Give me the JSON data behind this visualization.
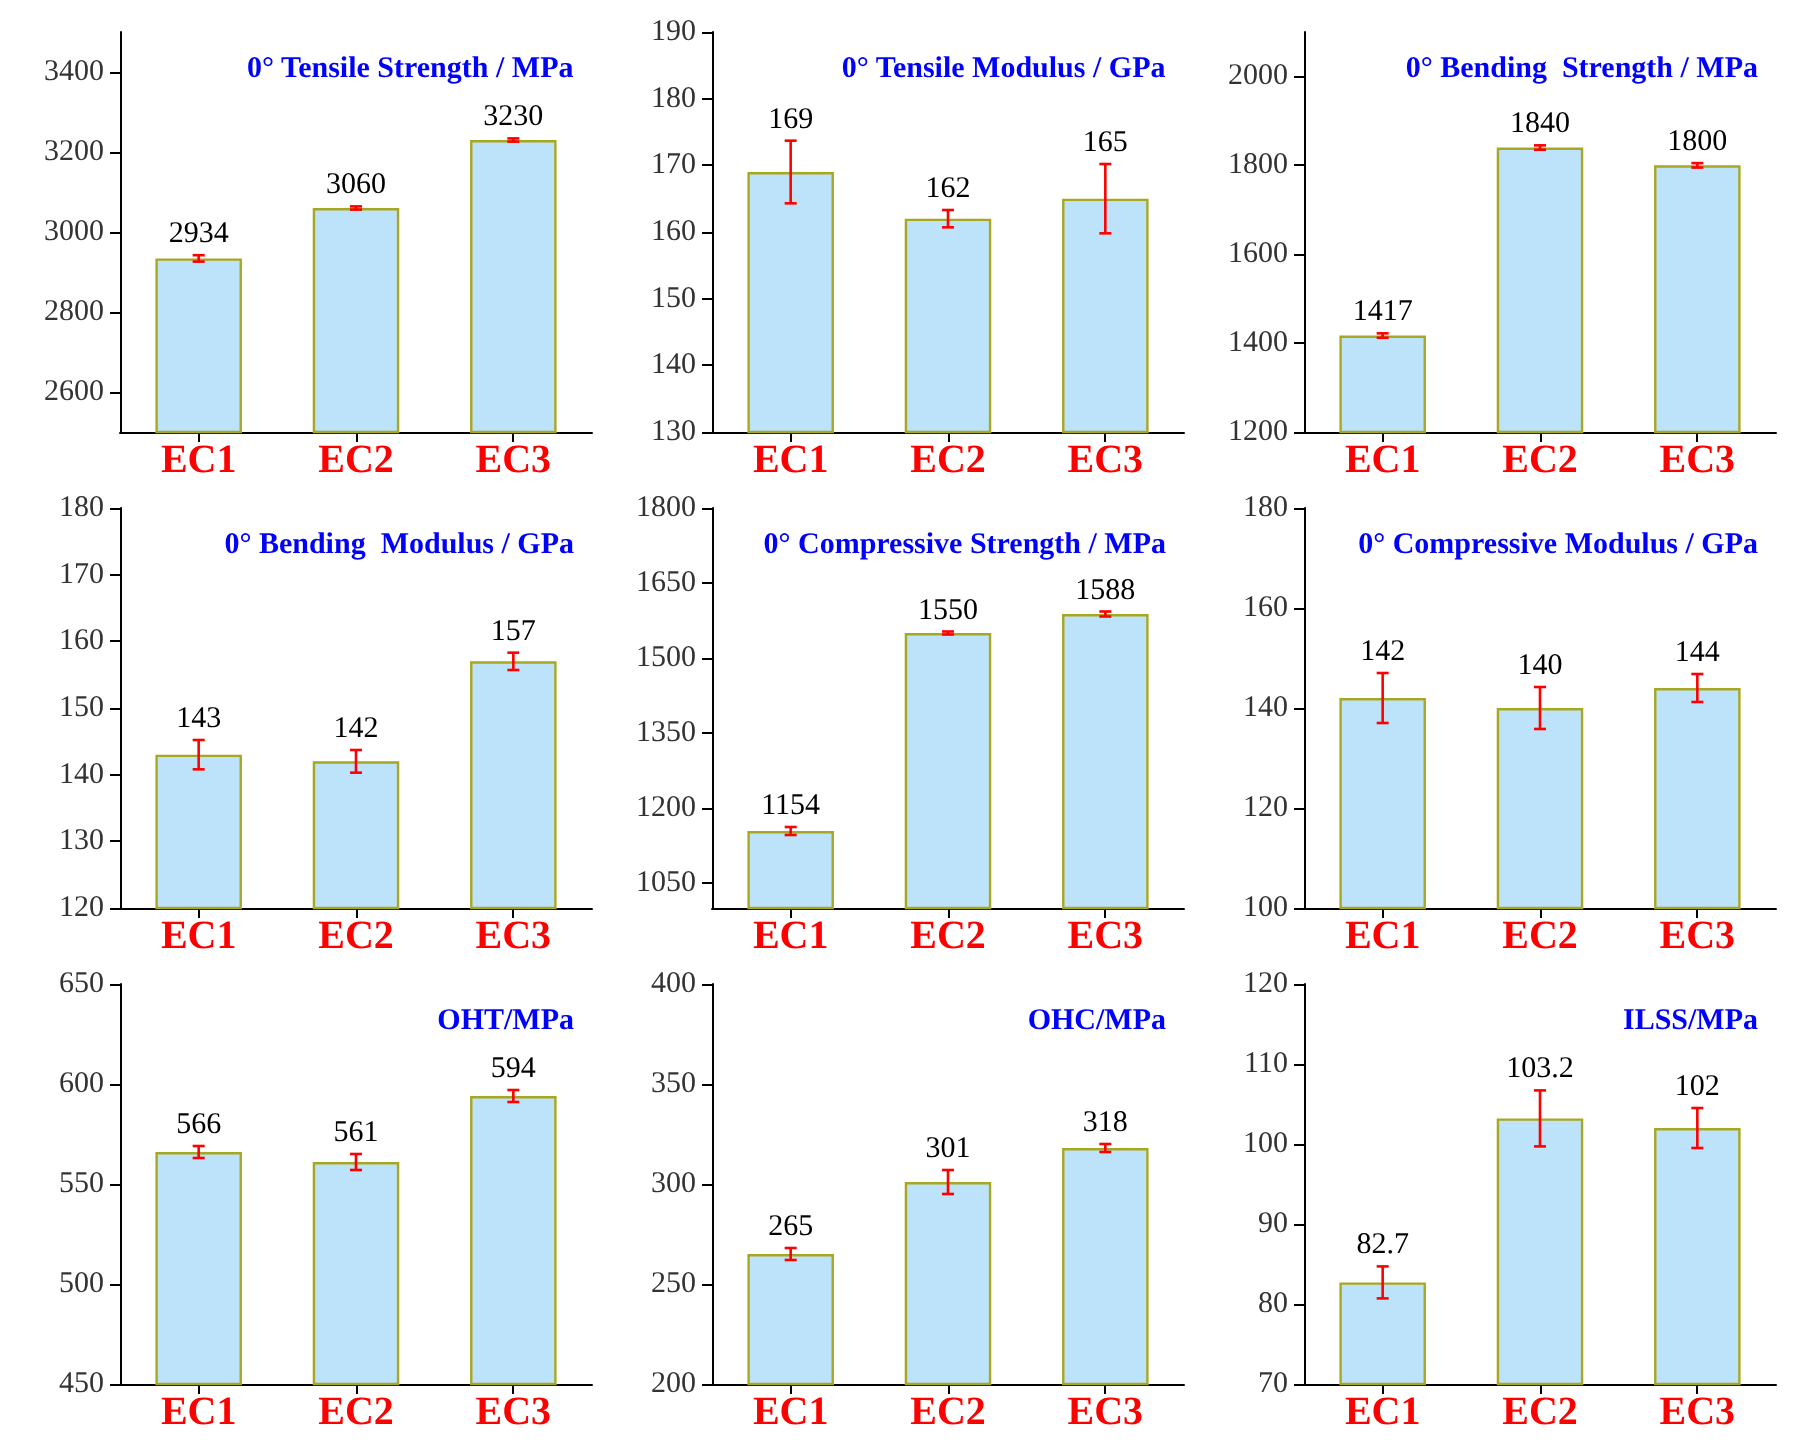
{
  "chart_data": [
    {
      "type": "bar",
      "title": "0° Tensile Strength / MPa",
      "categories": [
        "EC1",
        "EC2",
        "EC3"
      ],
      "values": [
        2934,
        3060,
        3230
      ],
      "errors": [
        8,
        4,
        4
      ],
      "color": "#bde3fa",
      "ylim": [
        2500,
        3500
      ],
      "yticks": [
        2600,
        2800,
        3000,
        3200,
        3400
      ],
      "data_labels": true,
      "grid": false
    },
    {
      "type": "bar",
      "title": "0° Tensile Modulus / GPa",
      "categories": [
        "EC1",
        "EC2",
        "EC3"
      ],
      "values": [
        169,
        162,
        165
      ],
      "errors": [
        4.7,
        1.3,
        5.2
      ],
      "color": "#bde3fa",
      "ylim": [
        130,
        190
      ],
      "yticks": [
        130,
        140,
        150,
        160,
        170,
        180,
        190
      ],
      "data_labels": true,
      "grid": false
    },
    {
      "type": "bar",
      "title": "0° Bending  Strength / MPa",
      "categories": [
        "EC1",
        "EC2",
        "EC3"
      ],
      "values": [
        1417,
        1840,
        1800
      ],
      "errors": [
        5,
        5,
        5
      ],
      "color": "#bde3fa",
      "ylim": [
        1200,
        2100
      ],
      "yticks": [
        1200,
        1400,
        1600,
        1800,
        2000
      ],
      "data_labels": true,
      "grid": false
    },
    {
      "type": "bar",
      "title": "0° Bending  Modulus / GPa",
      "categories": [
        "EC1",
        "EC2",
        "EC3"
      ],
      "values": [
        143,
        142,
        157
      ],
      "errors": [
        2.2,
        1.7,
        1.3
      ],
      "color": "#bde3fa",
      "ylim": [
        120,
        180
      ],
      "yticks": [
        120,
        130,
        140,
        150,
        160,
        170,
        180
      ],
      "data_labels": true,
      "grid": false
    },
    {
      "type": "bar",
      "title": "0° Compressive Strength / MPa",
      "categories": [
        "EC1",
        "EC2",
        "EC3"
      ],
      "values": [
        1154,
        1550,
        1588
      ],
      "errors": [
        8,
        3,
        5
      ],
      "color": "#bde3fa",
      "ylim": [
        1000,
        1800
      ],
      "yticks": [
        1050,
        1200,
        1350,
        1500,
        1650,
        1800
      ],
      "data_labels": true,
      "grid": false
    },
    {
      "type": "bar",
      "title": "0° Compressive Modulus / GPa",
      "categories": [
        "EC1",
        "EC2",
        "EC3"
      ],
      "values": [
        142,
        140,
        144
      ],
      "errors": [
        5,
        4.2,
        2.8
      ],
      "color": "#bde3fa",
      "ylim": [
        100,
        180
      ],
      "yticks": [
        100,
        120,
        140,
        160,
        180
      ],
      "data_labels": true,
      "grid": false
    },
    {
      "type": "bar",
      "title": "OHT/MPa",
      "categories": [
        "EC1",
        "EC2",
        "EC3"
      ],
      "values": [
        566,
        561,
        594
      ],
      "errors": [
        3,
        4,
        3
      ],
      "color": "#bde3fa",
      "ylim": [
        450,
        650
      ],
      "yticks": [
        450,
        500,
        550,
        600,
        650
      ],
      "data_labels": true,
      "grid": false
    },
    {
      "type": "bar",
      "title": "OHC/MPa",
      "categories": [
        "EC1",
        "EC2",
        "EC3"
      ],
      "values": [
        265,
        301,
        318
      ],
      "errors": [
        3,
        6,
        2
      ],
      "color": "#bde3fa",
      "ylim": [
        200,
        400
      ],
      "yticks": [
        200,
        250,
        300,
        350,
        400
      ],
      "data_labels": true,
      "grid": false
    },
    {
      "type": "bar",
      "title": "ILSS/MPa",
      "categories": [
        "EC1",
        "EC2",
        "EC3"
      ],
      "values": [
        82.7,
        103.2,
        102
      ],
      "errors": [
        2,
        3.5,
        2.5
      ],
      "color": "#bde3fa",
      "ylim": [
        70,
        120
      ],
      "yticks": [
        70,
        80,
        90,
        100,
        110,
        120
      ],
      "data_labels": true,
      "grid": false
    }
  ]
}
